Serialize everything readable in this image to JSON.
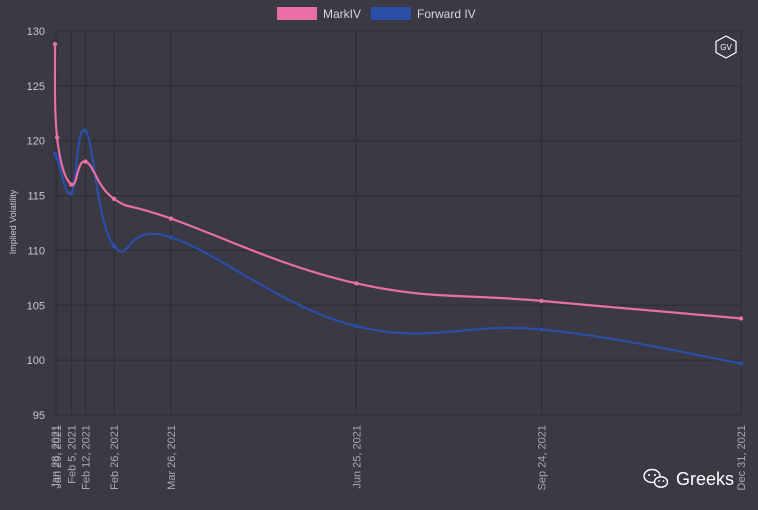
{
  "colors": {
    "background": "#3a3944",
    "grid": "#2d2c35",
    "mark": "#e96fa6",
    "forward": "#2a4fa8"
  },
  "icons": {
    "badge": "gv-hexagon-icon",
    "brand": "wechat-icon"
  },
  "badge_text": "GV",
  "brand_text": "Greeks",
  "chart_data": {
    "type": "line",
    "title": "",
    "xlabel": "",
    "ylabel": "Implied Volatility",
    "ylim": [
      95,
      130
    ],
    "yticks": [
      95,
      100,
      105,
      110,
      115,
      120,
      125,
      130
    ],
    "grid": true,
    "legend_position": "top",
    "x_tick_labels": [
      "Jan 28, 2021",
      "Jan 29, 2021",
      "Feb 5, 2021",
      "Feb 12, 2021",
      "Feb 26, 2021",
      "Mar 26, 2021",
      "Jun 25, 2021",
      "Sep 24, 2021",
      "Dec 31, 2021"
    ],
    "x": [
      "2021-01-28",
      "2021-01-29",
      "2021-02-05",
      "2021-02-12",
      "2021-02-26",
      "2021-03-26",
      "2021-06-25",
      "2021-09-24",
      "2021-12-31"
    ],
    "series": [
      {
        "name": "MarkIV",
        "color": "#e96fa6",
        "values": [
          128.8,
          120.3,
          116.0,
          118.1,
          114.7,
          112.9,
          107.0,
          105.4,
          103.8
        ]
      },
      {
        "name": "Forward IV",
        "color": "#2a4fa8",
        "values": [
          118.8,
          118.4,
          115.2,
          120.9,
          110.4,
          111.2,
          103.1,
          102.8,
          99.7
        ]
      }
    ]
  }
}
